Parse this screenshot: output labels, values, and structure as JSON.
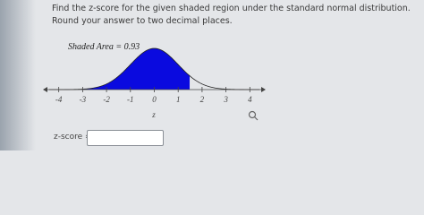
{
  "question": {
    "text": "Find the z-score for the given shaded region under the standard normal distribution. Round your answer to two decimal places."
  },
  "figure": {
    "label": "Shaded Area = 0.93",
    "xlim": [
      -4.4,
      4.4
    ],
    "xticks": [
      -4,
      -3,
      -2,
      -1,
      0,
      1,
      2,
      3,
      4
    ],
    "shaded_upper": 1.48,
    "axis_label": "z",
    "color": "#0a0adf"
  },
  "answer": {
    "label": "z-score ="
  }
}
